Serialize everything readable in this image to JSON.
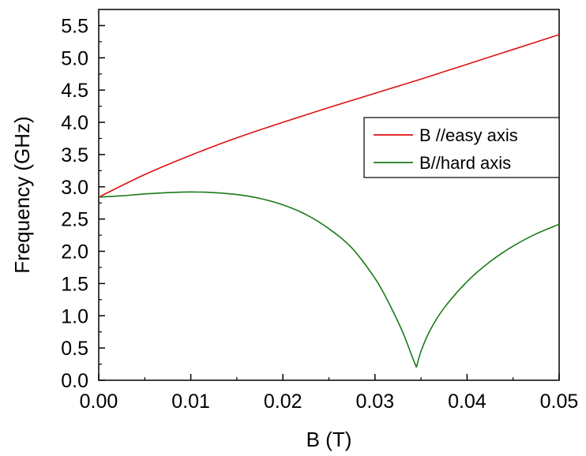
{
  "chart_data": {
    "type": "line",
    "title": "",
    "xlabel": "B (T)",
    "ylabel": "Frequency (GHz)",
    "xlim": [
      0.0,
      0.05
    ],
    "ylim": [
      0.0,
      5.75
    ],
    "xticks": [
      "0.00",
      "0.01",
      "0.02",
      "0.03",
      "0.04",
      "0.05"
    ],
    "yticks": [
      "0.0",
      "0.5",
      "1.0",
      "1.5",
      "2.0",
      "2.5",
      "3.0",
      "3.5",
      "4.0",
      "4.5",
      "5.0",
      "5.5"
    ],
    "grid": false,
    "legend_position": "center-right",
    "series": [
      {
        "name": "B //easy axis",
        "color": "#dd1111",
        "x": [
          0.0,
          0.005,
          0.01,
          0.015,
          0.02,
          0.025,
          0.03,
          0.035,
          0.04,
          0.045,
          0.05
        ],
        "y": [
          2.84,
          3.19,
          3.49,
          3.76,
          4.0,
          4.23,
          4.45,
          4.67,
          4.9,
          5.13,
          5.36
        ]
      },
      {
        "name": "B//hard axis",
        "color": "#1a7a1a",
        "x": [
          0.0,
          0.0025,
          0.005,
          0.0075,
          0.01,
          0.0125,
          0.015,
          0.0175,
          0.02,
          0.0225,
          0.025,
          0.0275,
          0.03,
          0.0315,
          0.033,
          0.034,
          0.0345,
          0.035,
          0.036,
          0.0375,
          0.04,
          0.0425,
          0.045,
          0.0475,
          0.05
        ],
        "y": [
          2.84,
          2.86,
          2.89,
          2.91,
          2.92,
          2.91,
          2.88,
          2.82,
          2.72,
          2.57,
          2.35,
          2.05,
          1.58,
          1.2,
          0.75,
          0.38,
          0.2,
          0.45,
          0.78,
          1.12,
          1.53,
          1.84,
          2.08,
          2.27,
          2.42
        ]
      }
    ]
  }
}
